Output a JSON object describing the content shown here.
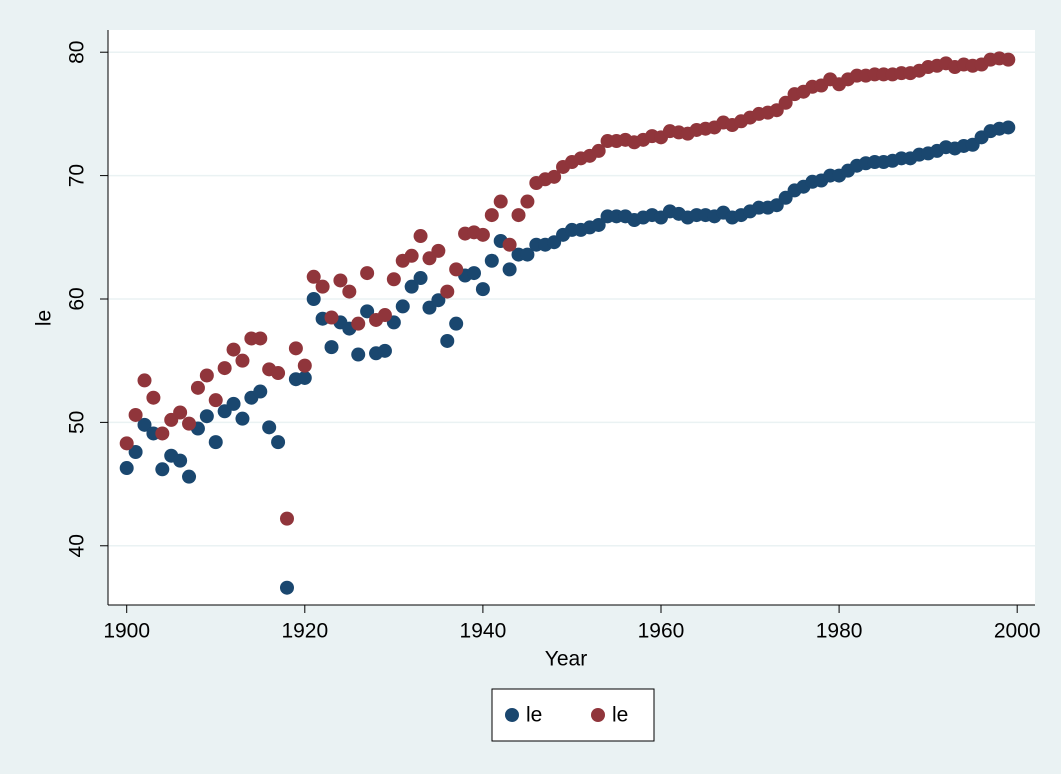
{
  "chart_data": {
    "type": "scatter",
    "xlabel": "Year",
    "ylabel": "le",
    "x": [
      1900,
      1901,
      1902,
      1903,
      1904,
      1905,
      1906,
      1907,
      1908,
      1909,
      1910,
      1911,
      1912,
      1913,
      1914,
      1915,
      1916,
      1917,
      1918,
      1919,
      1920,
      1921,
      1922,
      1923,
      1924,
      1925,
      1926,
      1927,
      1928,
      1929,
      1930,
      1931,
      1932,
      1933,
      1934,
      1935,
      1936,
      1937,
      1938,
      1939,
      1940,
      1941,
      1942,
      1943,
      1944,
      1945,
      1946,
      1947,
      1948,
      1949,
      1950,
      1951,
      1952,
      1953,
      1954,
      1955,
      1956,
      1957,
      1958,
      1959,
      1960,
      1961,
      1962,
      1963,
      1964,
      1965,
      1966,
      1967,
      1968,
      1969,
      1970,
      1971,
      1972,
      1973,
      1974,
      1975,
      1976,
      1977,
      1978,
      1979,
      1980,
      1981,
      1982,
      1983,
      1984,
      1985,
      1986,
      1987,
      1988,
      1989,
      1990,
      1991,
      1992,
      1993,
      1994,
      1995,
      1996,
      1997,
      1998,
      1999
    ],
    "series": [
      {
        "name": "le",
        "color": "#1a476f",
        "values": [
          46.3,
          47.6,
          49.8,
          49.1,
          46.2,
          47.3,
          46.9,
          45.6,
          49.5,
          50.5,
          48.4,
          50.9,
          51.5,
          50.3,
          52.0,
          52.5,
          49.6,
          48.4,
          36.6,
          53.5,
          53.6,
          60.0,
          58.4,
          56.1,
          58.1,
          57.6,
          55.5,
          59.0,
          55.6,
          55.8,
          58.1,
          59.4,
          61.0,
          61.7,
          59.3,
          59.9,
          56.6,
          58.0,
          61.9,
          62.1,
          60.8,
          63.1,
          64.7,
          62.4,
          63.6,
          63.6,
          64.4,
          64.4,
          64.6,
          65.2,
          65.6,
          65.6,
          65.8,
          66.0,
          66.7,
          66.7,
          66.7,
          66.4,
          66.6,
          66.8,
          66.6,
          67.1,
          66.9,
          66.6,
          66.8,
          66.8,
          66.7,
          67.0,
          66.6,
          66.8,
          67.1,
          67.4,
          67.4,
          67.6,
          68.2,
          68.8,
          69.1,
          69.5,
          69.6,
          70.0,
          70.0,
          70.4,
          70.8,
          71.0,
          71.1,
          71.1,
          71.2,
          71.4,
          71.4,
          71.7,
          71.8,
          72.0,
          72.3,
          72.2,
          72.4,
          72.5,
          73.1,
          73.6,
          73.8,
          73.9
        ]
      },
      {
        "name": "le",
        "color": "#90353b",
        "values": [
          48.3,
          50.6,
          53.4,
          52.0,
          49.1,
          50.2,
          50.8,
          49.9,
          52.8,
          53.8,
          51.8,
          54.4,
          55.9,
          55.0,
          56.8,
          56.8,
          54.3,
          54.0,
          42.2,
          56.0,
          54.6,
          61.8,
          61.0,
          58.5,
          61.5,
          60.6,
          58.0,
          62.1,
          58.3,
          58.7,
          61.6,
          63.1,
          63.5,
          65.1,
          63.3,
          63.9,
          60.6,
          62.4,
          65.3,
          65.4,
          65.2,
          66.8,
          67.9,
          64.4,
          66.8,
          67.9,
          69.4,
          69.7,
          69.9,
          70.7,
          71.1,
          71.4,
          71.6,
          72.0,
          72.8,
          72.8,
          72.9,
          72.7,
          72.9,
          73.2,
          73.1,
          73.6,
          73.5,
          73.4,
          73.7,
          73.8,
          73.9,
          74.3,
          74.1,
          74.4,
          74.7,
          75.0,
          75.1,
          75.3,
          75.9,
          76.6,
          76.8,
          77.2,
          77.3,
          77.8,
          77.4,
          77.8,
          78.1,
          78.1,
          78.2,
          78.2,
          78.2,
          78.3,
          78.3,
          78.5,
          78.8,
          78.9,
          79.1,
          78.8,
          79.0,
          78.9,
          79.0,
          79.4,
          79.5,
          79.4
        ]
      }
    ],
    "xlim": [
      1897.9,
      2002
    ],
    "xticks": [
      1900,
      1920,
      1940,
      1960,
      1980,
      2000
    ],
    "ylim": [
      35.2,
      81.8
    ],
    "yticks": [
      40,
      50,
      60,
      70,
      80
    ],
    "grid": true,
    "legend": "bottom"
  }
}
